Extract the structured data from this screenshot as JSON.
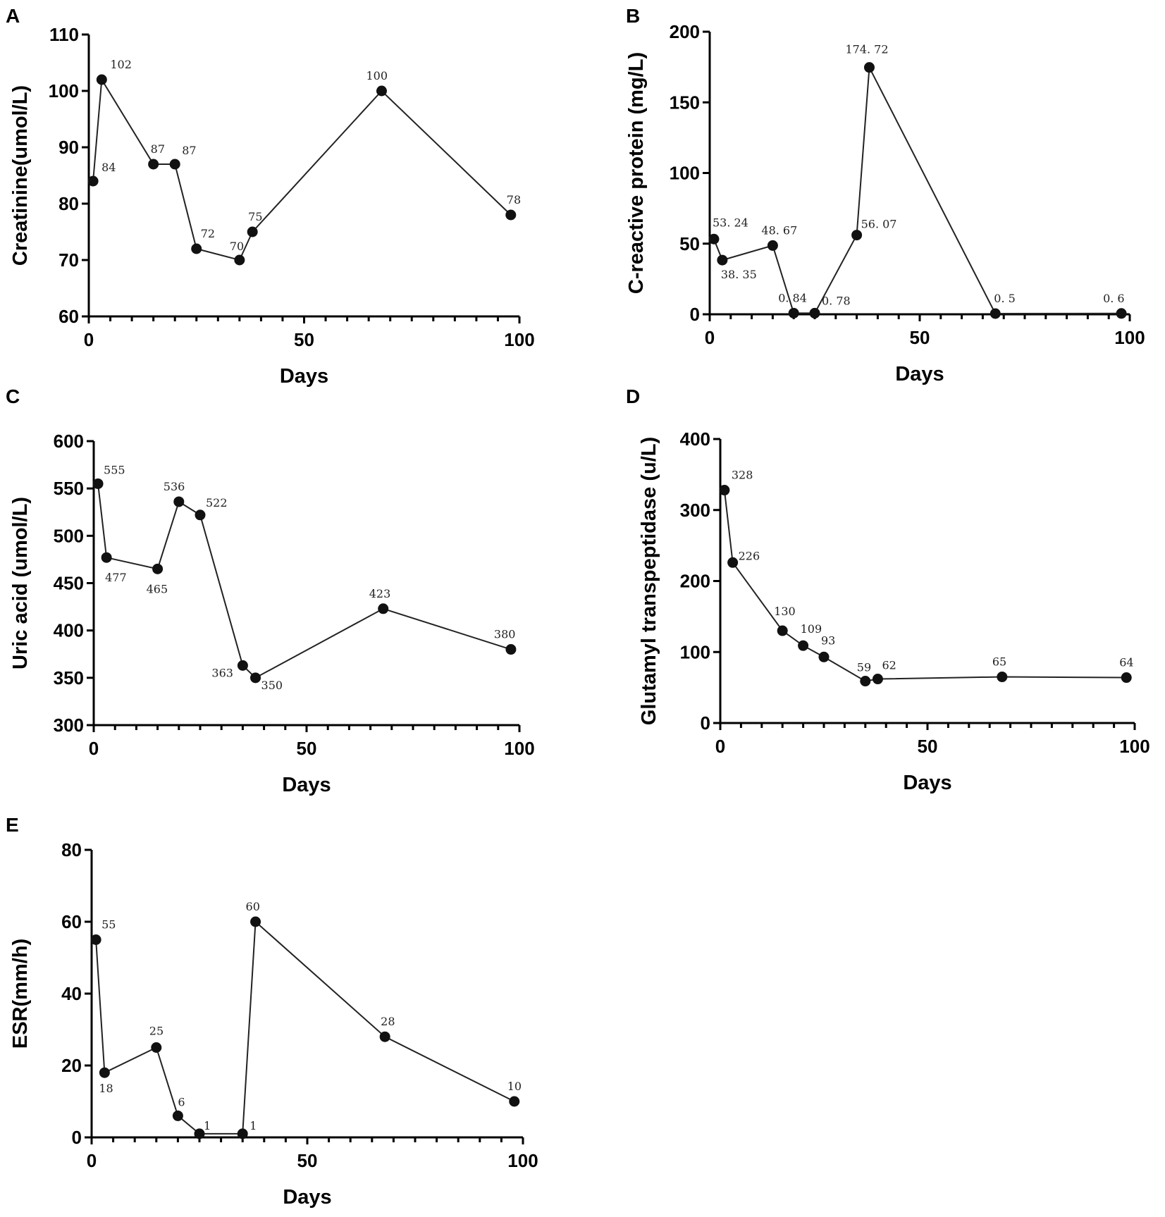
{
  "chart_data": [
    {
      "panel": "A",
      "type": "line",
      "title": "",
      "xlabel": "Days",
      "ylabel": "Creatinine(umol/L)",
      "xlim": [
        0,
        100
      ],
      "ylim": [
        60,
        110
      ],
      "xticks": [
        0,
        50,
        100
      ],
      "yticks": [
        60,
        70,
        80,
        90,
        100,
        110
      ],
      "x": [
        1,
        3,
        15,
        20,
        25,
        35,
        38,
        68,
        98
      ],
      "y": [
        84,
        102,
        87,
        87,
        72,
        70,
        75,
        100,
        78
      ],
      "labels": [
        "84",
        "102",
        "87",
        "87",
        "72",
        "70",
        "75",
        "100",
        "78"
      ]
    },
    {
      "panel": "B",
      "type": "line",
      "title": "",
      "xlabel": "Days",
      "ylabel": "C-reactive protein (mg/L)",
      "xlim": [
        0,
        100
      ],
      "ylim": [
        0,
        200
      ],
      "xticks": [
        0,
        50,
        100
      ],
      "yticks": [
        0,
        50,
        100,
        150,
        200
      ],
      "x": [
        1,
        3,
        15,
        20,
        25,
        35,
        38,
        68,
        98
      ],
      "y": [
        53.24,
        38.35,
        48.67,
        0.84,
        0.78,
        56.07,
        174.72,
        0.5,
        0.6
      ],
      "labels": [
        "53. 24",
        "38. 35",
        "48. 67",
        "0. 84",
        "0. 78",
        "56. 07",
        "174. 72",
        "0. 5",
        "0. 6"
      ]
    },
    {
      "panel": "C",
      "type": "line",
      "title": "",
      "xlabel": "Days",
      "ylabel": "Uric acid (umol/L)",
      "xlim": [
        0,
        100
      ],
      "ylim": [
        300,
        600
      ],
      "xticks": [
        0,
        50,
        100
      ],
      "yticks": [
        300,
        350,
        400,
        450,
        500,
        550,
        600
      ],
      "x": [
        1,
        3,
        15,
        20,
        25,
        35,
        38,
        68,
        98
      ],
      "y": [
        555,
        477,
        465,
        536,
        522,
        363,
        350,
        423,
        380
      ],
      "labels": [
        "555",
        "477",
        "465",
        "536",
        "522",
        "363",
        "350",
        "423",
        "380"
      ]
    },
    {
      "panel": "D",
      "type": "line",
      "title": "",
      "xlabel": "Days",
      "ylabel": "Glutamyl transpeptidase (u/L)",
      "xlim": [
        0,
        100
      ],
      "ylim": [
        0,
        400
      ],
      "xticks": [
        0,
        50,
        100
      ],
      "yticks": [
        0,
        100,
        200,
        300,
        400
      ],
      "x": [
        1,
        3,
        15,
        20,
        25,
        35,
        38,
        68,
        98
      ],
      "y": [
        328,
        226,
        130,
        109,
        93,
        59,
        62,
        65,
        64
      ],
      "labels": [
        "328",
        "226",
        "130",
        "109",
        "93",
        "59",
        "62",
        "65",
        "64"
      ]
    },
    {
      "panel": "E",
      "type": "line",
      "title": "",
      "xlabel": "Days",
      "ylabel": "ESR(mm/h)",
      "xlim": [
        0,
        100
      ],
      "ylim": [
        0,
        80
      ],
      "xticks": [
        0,
        50,
        100
      ],
      "yticks": [
        0,
        20,
        40,
        60,
        80
      ],
      "x": [
        1,
        3,
        15,
        20,
        25,
        35,
        38,
        68,
        98
      ],
      "y": [
        55,
        18,
        25,
        6,
        1,
        1,
        60,
        28,
        10
      ],
      "labels": [
        "55",
        "18",
        "25",
        "6",
        "1",
        "1",
        "60",
        "28",
        "10"
      ]
    }
  ]
}
